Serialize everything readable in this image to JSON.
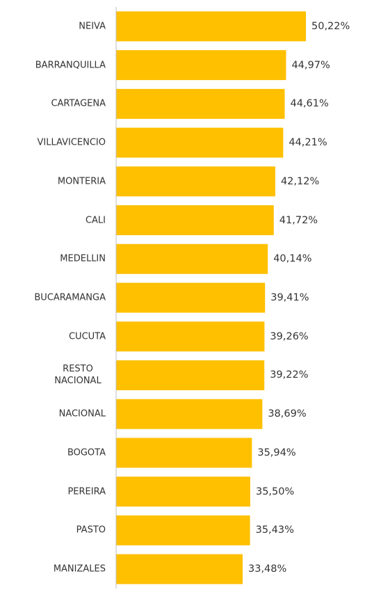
{
  "chart_data": {
    "type": "bar",
    "orientation": "horizontal",
    "categories": [
      "NEIVA",
      "BARRANQUILLA",
      "CARTAGENA",
      "VILLAVICENCIO",
      "MONTERIA",
      "CALI",
      "MEDELLIN",
      "BUCARAMANGA",
      "CUCUTA",
      "RESTO NACIONAL",
      "NACIONAL",
      "BOGOTA",
      "PEREIRA",
      "PASTO",
      "MANIZALES"
    ],
    "values": [
      50.22,
      44.97,
      44.61,
      44.21,
      42.12,
      41.72,
      40.14,
      39.41,
      39.26,
      39.22,
      38.69,
      35.94,
      35.5,
      35.43,
      33.48
    ],
    "value_labels": [
      "50,22%",
      "44,97%",
      "44,61%",
      "44,21%",
      "42,12%",
      "41,72%",
      "40,14%",
      "39,41%",
      "39,26%",
      "39,22%",
      "38,69%",
      "35,94%",
      "35,50%",
      "35,43%",
      "33,48%"
    ],
    "color": "#FFC000"
  }
}
